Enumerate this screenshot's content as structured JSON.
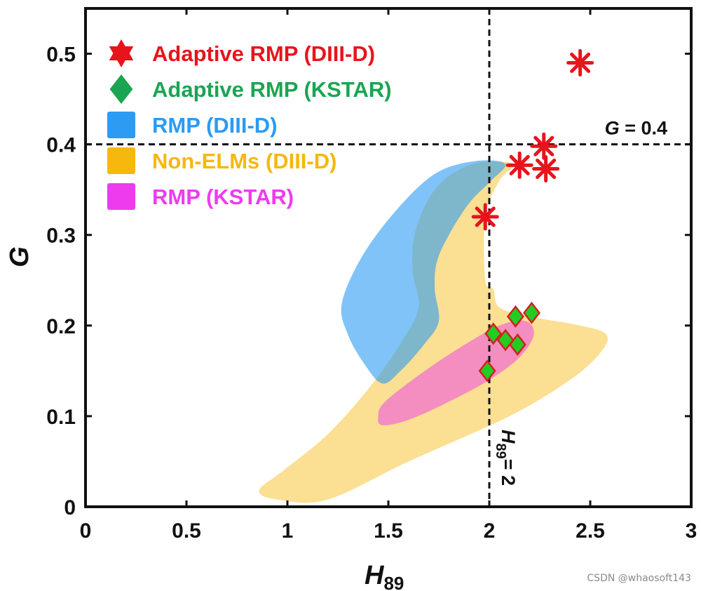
{
  "chart_data": {
    "type": "scatter",
    "xlabel": "H",
    "xlabel_sub": "89",
    "ylabel": "G",
    "xlim": [
      0,
      3
    ],
    "ylim": [
      0,
      0.55
    ],
    "xticks": [
      "0",
      "0.5",
      "1",
      "1.5",
      "2",
      "2.5",
      "3"
    ],
    "xtick_values": [
      0,
      0.5,
      1,
      1.5,
      2,
      2.5,
      3
    ],
    "yticks": [
      "0",
      "0.1",
      "0.2",
      "0.3",
      "0.4",
      "0.5"
    ],
    "ytick_values": [
      0,
      0.1,
      0.2,
      0.3,
      0.4,
      0.5
    ],
    "grid": false,
    "legend_position": "top-left",
    "legend": [
      {
        "label": "Adaptive RMP (DIII-D)",
        "color": "#e8141c",
        "marker": "star"
      },
      {
        "label": "Adaptive RMP (KSTAR)",
        "color": "#1aa553",
        "marker": "diamond"
      },
      {
        "label": "RMP (DIII-D)",
        "color": "#2b9bf4",
        "marker": "square"
      },
      {
        "label": "Non-ELMs (DIII-D)",
        "color": "#f6b80d",
        "marker": "square"
      },
      {
        "label": "RMP (KSTAR)",
        "color": "#ee3bee",
        "marker": "square"
      }
    ],
    "series": [
      {
        "name": "Adaptive RMP (DIII-D)",
        "marker": "asterisk",
        "color": "#e8141c",
        "points": [
          [
            1.98,
            0.32
          ],
          [
            2.15,
            0.377
          ],
          [
            2.27,
            0.398
          ],
          [
            2.28,
            0.373
          ],
          [
            2.45,
            0.49
          ]
        ]
      },
      {
        "name": "Adaptive RMP (KSTAR)",
        "marker": "diamond",
        "color": "#22cc22",
        "edge_color": "#d42020",
        "points": [
          [
            1.99,
            0.15
          ],
          [
            2.02,
            0.191
          ],
          [
            2.08,
            0.184
          ],
          [
            2.13,
            0.21
          ],
          [
            2.14,
            0.179
          ],
          [
            2.21,
            0.214
          ]
        ]
      }
    ],
    "regions": [
      {
        "name": "Non-ELMs (DIII-D)",
        "color": "#f6b80d",
        "opacity": 0.45,
        "boundary": [
          [
            0.86,
            0.018
          ],
          [
            0.95,
            0.008
          ],
          [
            1.2,
            0.008
          ],
          [
            1.6,
            0.05
          ],
          [
            2.1,
            0.1
          ],
          [
            2.4,
            0.14
          ],
          [
            2.55,
            0.17
          ],
          [
            2.58,
            0.19
          ],
          [
            2.45,
            0.2
          ],
          [
            2.2,
            0.21
          ],
          [
            2.05,
            0.22
          ],
          [
            2.02,
            0.24
          ],
          [
            1.98,
            0.25
          ],
          [
            1.98,
            0.32
          ],
          [
            2.05,
            0.36
          ],
          [
            2.12,
            0.378
          ],
          [
            1.95,
            0.38
          ],
          [
            1.8,
            0.365
          ],
          [
            1.7,
            0.34
          ],
          [
            1.63,
            0.3
          ],
          [
            1.62,
            0.26
          ],
          [
            1.65,
            0.22
          ],
          [
            1.56,
            0.18
          ],
          [
            1.4,
            0.13
          ],
          [
            1.2,
            0.08
          ],
          [
            0.98,
            0.04
          ]
        ]
      },
      {
        "name": "RMP (DIII-D)",
        "color": "#2b9bf4",
        "opacity": 0.6,
        "boundary": [
          [
            1.47,
            0.136
          ],
          [
            1.56,
            0.15
          ],
          [
            1.68,
            0.18
          ],
          [
            1.75,
            0.205
          ],
          [
            1.73,
            0.24
          ],
          [
            1.74,
            0.27
          ],
          [
            1.8,
            0.3
          ],
          [
            1.9,
            0.335
          ],
          [
            2.01,
            0.36
          ],
          [
            2.08,
            0.378
          ],
          [
            1.95,
            0.382
          ],
          [
            1.75,
            0.37
          ],
          [
            1.57,
            0.335
          ],
          [
            1.38,
            0.28
          ],
          [
            1.27,
            0.225
          ],
          [
            1.3,
            0.19
          ],
          [
            1.38,
            0.158
          ]
        ]
      },
      {
        "name": "RMP (KSTAR)",
        "color": "#ee3bee",
        "opacity": 0.5,
        "boundary": [
          [
            1.47,
            0.09
          ],
          [
            1.6,
            0.096
          ],
          [
            1.8,
            0.116
          ],
          [
            2.0,
            0.14
          ],
          [
            2.15,
            0.165
          ],
          [
            2.22,
            0.19
          ],
          [
            2.18,
            0.205
          ],
          [
            2.05,
            0.2
          ],
          [
            1.85,
            0.175
          ],
          [
            1.65,
            0.145
          ],
          [
            1.48,
            0.115
          ],
          [
            1.45,
            0.1
          ]
        ]
      }
    ],
    "reference_lines": [
      {
        "orientation": "horizontal",
        "value": 0.4,
        "style": "dashed",
        "label": "= 0.4",
        "label_var": "G"
      },
      {
        "orientation": "vertical",
        "value": 2,
        "style": "dashed",
        "label": "= 2",
        "label_var": "H",
        "label_sub": "89"
      }
    ]
  },
  "watermark": "CSDN @whaosoft143"
}
